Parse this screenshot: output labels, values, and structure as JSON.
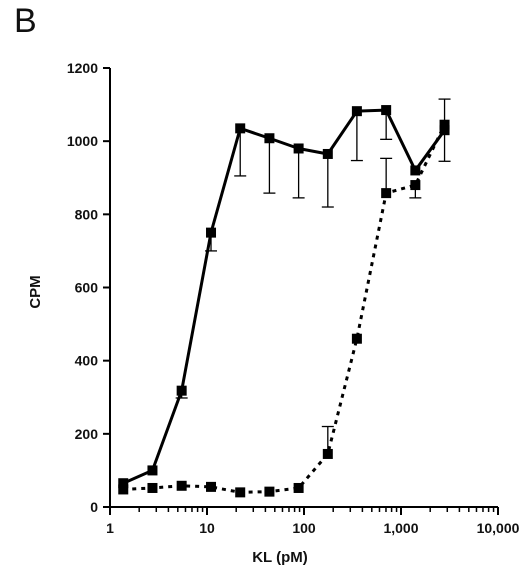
{
  "panel_label": "B",
  "chart_data": {
    "type": "line",
    "title": "",
    "xlabel": "KL (pM)",
    "ylabel": "CPM",
    "xscale": "log",
    "xlim": [
      1,
      10000
    ],
    "ylim": [
      0,
      1200
    ],
    "x_ticks": [
      1,
      10,
      100,
      1000,
      10000
    ],
    "x_tick_labels": [
      "1",
      "10",
      "100",
      "1,000",
      "10,000"
    ],
    "y_ticks": [
      0,
      200,
      400,
      600,
      800,
      1000,
      1200
    ],
    "y_tick_labels": [
      "0",
      "200",
      "400",
      "600",
      "800",
      "1000",
      "1200"
    ],
    "grid": false,
    "legend": "none",
    "series": [
      {
        "style": "solid",
        "color": "#000000",
        "marker": "square",
        "x": [
          1.37,
          2.74,
          5.48,
          11,
          22,
          44,
          88,
          176,
          351,
          703,
          1406,
          2812
        ],
        "y": [
          65,
          100,
          318,
          750,
          1035,
          1008,
          980,
          965,
          1082,
          1085,
          920,
          1030
        ],
        "error_upper": [
          0,
          0,
          0,
          0,
          0,
          0,
          0,
          0,
          0,
          0,
          0,
          85
        ],
        "error_lower": [
          0,
          0,
          20,
          50,
          130,
          150,
          135,
          145,
          135,
          80,
          0,
          85
        ]
      },
      {
        "style": "dashed",
        "color": "#000000",
        "marker": "square",
        "x": [
          1.37,
          2.74,
          5.48,
          11,
          22,
          44,
          88,
          176,
          351,
          703,
          1406,
          2812
        ],
        "y": [
          48,
          52,
          58,
          55,
          40,
          42,
          52,
          145,
          460,
          858,
          880,
          1045
        ],
        "error_upper": [
          0,
          0,
          0,
          0,
          0,
          0,
          0,
          75,
          0,
          95,
          0,
          0
        ],
        "error_lower": [
          0,
          0,
          0,
          0,
          0,
          0,
          0,
          0,
          0,
          0,
          35,
          0
        ]
      }
    ]
  }
}
